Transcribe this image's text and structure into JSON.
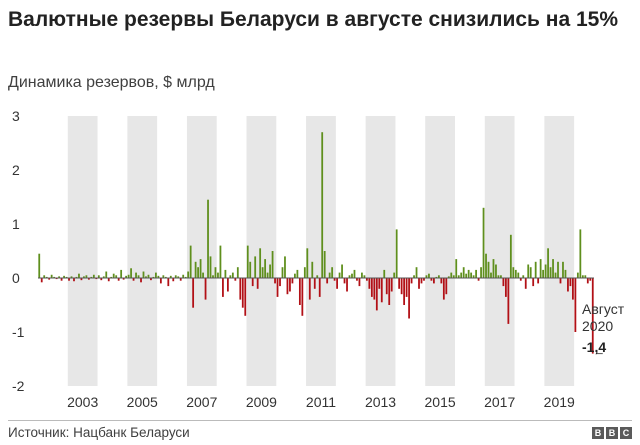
{
  "header": {
    "title": "Валютные резервы Беларуси в августе снизились на 15%",
    "subtitle": "Динамика резервов, $ млрд"
  },
  "footer": {
    "source": "Источник: Нацбанк Беларуси",
    "logo": [
      "B",
      "B",
      "C"
    ]
  },
  "colors": {
    "positive": "#5f8f1d",
    "negative": "#b21016",
    "band": "#e7e7e7",
    "axis": "#555555"
  },
  "chart_data": {
    "type": "bar",
    "title": "Валютные резервы Беларуси в августе снизились на 15%",
    "subtitle": "Динамика резервов, $ млрд",
    "ylim": [
      -2,
      3
    ],
    "y_ticks": [
      3,
      2,
      1,
      0,
      -1,
      -2
    ],
    "y_tick_labels": [
      "3",
      "2",
      "1",
      "0",
      "-1",
      "-2"
    ],
    "x_start": "2002-01",
    "x_end": "2020-08",
    "x_tick_labels": [
      "2003",
      "2005",
      "2007",
      "2009",
      "2011",
      "2013",
      "2015",
      "2017",
      "2019"
    ],
    "shaded_years": [
      2003,
      2005,
      2007,
      2009,
      2011,
      2013,
      2015,
      2017,
      2019
    ],
    "annotation": {
      "label_line1": "Август",
      "label_line2": "2020",
      "value_text": "-1,4",
      "x": "2020-08",
      "y": -1.4
    },
    "series": [
      {
        "values": [
          0.45,
          -0.08,
          0.05,
          0.02,
          -0.03,
          0.06,
          0.02,
          -0.02,
          0.03,
          -0.05,
          0.04,
          0.02,
          -0.05,
          0.03,
          -0.06,
          0.02,
          0.08,
          -0.04,
          0.03,
          0.05,
          -0.03,
          0.02,
          0.06,
          -0.02,
          0.05,
          -0.04,
          0.03,
          0.12,
          -0.06,
          0.02,
          0.08,
          0.05,
          -0.05,
          0.15,
          -0.03,
          0.04,
          0.06,
          0.18,
          -0.05,
          0.1,
          0.05,
          -0.08,
          0.12,
          0.03,
          0.06,
          -0.04,
          0.02,
          0.1,
          0.04,
          -0.1,
          0.05,
          0.02,
          -0.15,
          0.04,
          -0.06,
          0.05,
          0.03,
          -0.05,
          0.06,
          0.02,
          0.12,
          0.6,
          -0.55,
          0.3,
          0.2,
          0.35,
          0.1,
          -0.4,
          1.45,
          0.4,
          0.05,
          0.2,
          0.1,
          0.6,
          -0.35,
          0.15,
          -0.25,
          0.05,
          0.1,
          -0.05,
          0.2,
          -0.4,
          -0.55,
          -0.7,
          0.6,
          0.3,
          -0.15,
          0.4,
          -0.2,
          0.55,
          0.2,
          0.35,
          0.1,
          0.25,
          0.5,
          -0.1,
          -0.35,
          -0.15,
          0.2,
          0.4,
          -0.3,
          -0.25,
          -0.1,
          0.08,
          0.15,
          -0.5,
          -0.7,
          0.2,
          0.55,
          -0.4,
          0.3,
          -0.2,
          0.05,
          -0.35,
          2.7,
          0.5,
          -0.1,
          0.1,
          0.2,
          -0.05,
          -0.2,
          0.1,
          0.25,
          -0.1,
          -0.25,
          0.05,
          0.08,
          0.15,
          -0.05,
          -0.15,
          0.1,
          0.05,
          -0.05,
          -0.2,
          -0.35,
          -0.4,
          -0.6,
          -0.2,
          -0.45,
          0.15,
          -0.3,
          -0.5,
          -0.25,
          0.1,
          0.9,
          -0.2,
          -0.3,
          -0.5,
          -0.35,
          -0.75,
          -0.1,
          0.05,
          0.2,
          -0.2,
          -0.1,
          -0.05,
          0.05,
          0.08,
          -0.05,
          -0.1,
          0.02,
          0.05,
          -0.1,
          -0.4,
          -0.3,
          0.03,
          0.1,
          0.05,
          0.35,
          0.05,
          0.1,
          0.2,
          0.08,
          0.15,
          0.1,
          0.05,
          0.15,
          -0.05,
          0.2,
          1.3,
          0.45,
          0.3,
          0.1,
          0.35,
          0.25,
          0.05,
          0.05,
          -0.15,
          -0.35,
          -0.85,
          0.8,
          0.2,
          0.15,
          0.1,
          -0.05,
          0.05,
          -0.2,
          0.25,
          0.2,
          -0.15,
          0.3,
          -0.1,
          0.35,
          0.15,
          0.25,
          0.55,
          0.2,
          0.35,
          0.1,
          0.3,
          -0.1,
          0.3,
          0.15,
          -0.25,
          -0.15,
          -0.4,
          -1.0,
          0.1,
          0.9,
          0.05,
          0.05,
          -0.1,
          -0.05,
          -1.4
        ]
      }
    ]
  }
}
